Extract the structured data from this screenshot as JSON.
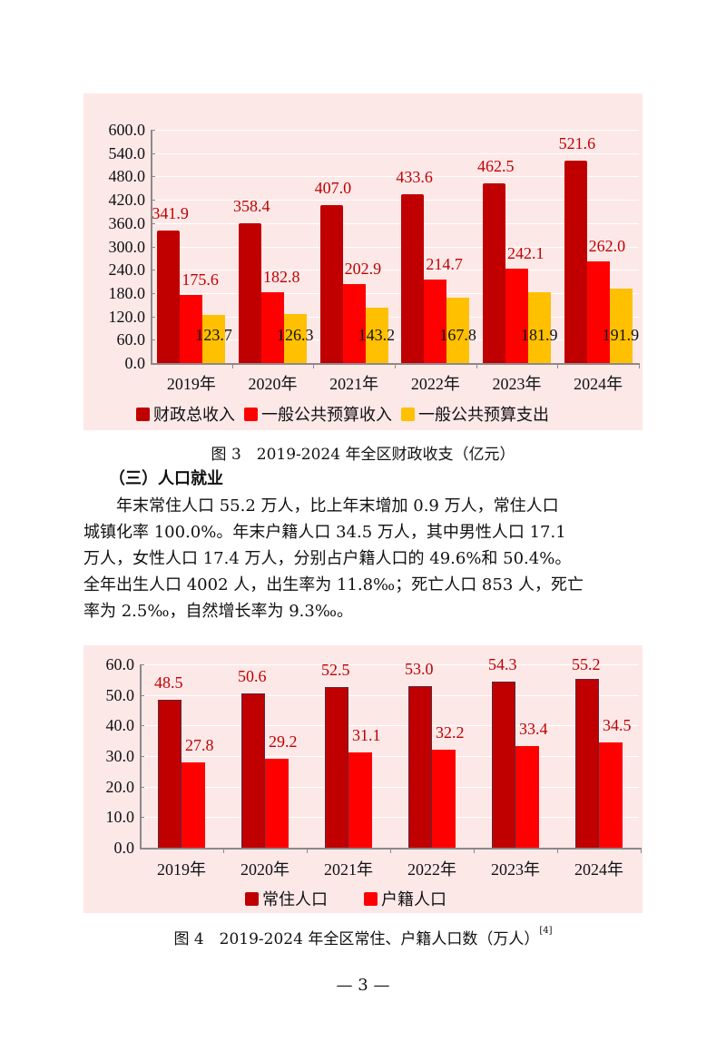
{
  "chart_data": [
    {
      "type": "bar",
      "title": "图3　2019-2024年全区财政收支（亿元）",
      "categories": [
        "2019年",
        "2020年",
        "2021年",
        "2022年",
        "2023年",
        "2024年"
      ],
      "series": [
        {
          "name": "财政总收入",
          "color": "#c00000",
          "values": [
            341.9,
            358.4,
            407.0,
            433.6,
            462.5,
            521.6
          ]
        },
        {
          "name": "一般公共预算收入",
          "color": "#ff0000",
          "values": [
            175.6,
            182.8,
            202.9,
            214.7,
            242.1,
            262.0
          ]
        },
        {
          "name": "一般公共预算支出",
          "color": "#ffc000",
          "values": [
            123.7,
            126.3,
            143.2,
            167.8,
            181.9,
            191.9
          ]
        }
      ],
      "xlabel": "",
      "ylabel": "",
      "ylim": [
        0,
        600
      ],
      "yticks": [
        "0.0",
        "60.0",
        "120.0",
        "180.0",
        "240.0",
        "300.0",
        "360.0",
        "420.0",
        "480.0",
        "540.0",
        "600.0"
      ],
      "grid": true,
      "legend_position": "bottom",
      "background": "#fde8e8"
    },
    {
      "type": "bar",
      "title": "图4　2019-2024年全区常住、户籍人口数（万人）[4]",
      "categories": [
        "2019年",
        "2020年",
        "2021年",
        "2022年",
        "2023年",
        "2024年"
      ],
      "series": [
        {
          "name": "常住人口",
          "color": "#c00000",
          "values": [
            48.5,
            50.6,
            52.5,
            53.0,
            54.3,
            55.2
          ]
        },
        {
          "name": "户籍人口",
          "color": "#ff0000",
          "values": [
            27.8,
            29.2,
            31.1,
            32.2,
            33.4,
            34.5
          ]
        }
      ],
      "xlabel": "",
      "ylabel": "",
      "ylim": [
        0,
        60
      ],
      "yticks": [
        "0.0",
        "10.0",
        "20.0",
        "30.0",
        "40.0",
        "50.0",
        "60.0"
      ],
      "grid": true,
      "legend_position": "bottom",
      "background": "#fde8e8"
    }
  ],
  "captions": {
    "fig3": "图 3　2019-2024 年全区财政收支（亿元）",
    "fig4": "图 4　2019-2024 年全区常住、户籍人口数（万人）",
    "fig4_sup": "[4]"
  },
  "section": {
    "heading": "（三）人口就业",
    "paragraph_lines": [
      "　　年末常住人口 55.2 万人，比上年末增加 0.9 万人，常住人口",
      "城镇化率 100.0%。年末户籍人口 34.5 万人，其中男性人口 17.1",
      "万人，女性人口 17.4 万人，分别占户籍人口的 49.6%和 50.4%。",
      "全年出生人口 4002 人，出生率为 11.8‰；死亡人口 853 人，死亡",
      "率为 2.5‰，自然增长率为 9.3‰。"
    ]
  },
  "page_number": "— 3 —"
}
